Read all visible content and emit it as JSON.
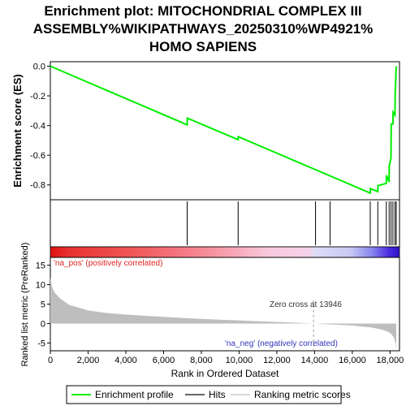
{
  "title_lines": [
    "Enrichment plot: MITOCHONDRIAL COMPLEX III",
    "ASSEMBLY%WIKIPATHWAYS_20250310%WP4921%",
    "HOMO SAPIENS"
  ],
  "chart_data": [
    {
      "type": "line",
      "panel": "enrichment",
      "ylabel": "Enrichment score (ES)",
      "xlim": [
        0,
        18500
      ],
      "ylim": [
        -0.9,
        0.03
      ],
      "yticks": [
        0.0,
        -0.2,
        -0.4,
        -0.6,
        -0.8
      ],
      "ytick_labels": [
        "0.0",
        "-0.2",
        "-0.4",
        "-0.6",
        "-0.8"
      ],
      "series": [
        {
          "name": "Enrichment profile",
          "color": "#00ee00",
          "x": [
            0,
            7250,
            7260,
            9950,
            9960,
            16950,
            16960,
            17350,
            17360,
            17800,
            17810,
            17950,
            17960,
            18050,
            18060,
            18150,
            18160,
            18260,
            18270,
            18330
          ],
          "y": [
            0.0,
            -0.395,
            -0.35,
            -0.495,
            -0.475,
            -0.855,
            -0.825,
            -0.845,
            -0.805,
            -0.79,
            -0.735,
            -0.78,
            -0.67,
            -0.62,
            -0.39,
            -0.39,
            -0.31,
            -0.33,
            -0.18,
            0.0
          ]
        }
      ]
    },
    {
      "type": "scatter",
      "panel": "hits",
      "hit_positions": [
        7250,
        9950,
        14050,
        14820,
        16950,
        17350,
        17800,
        17950,
        18050,
        18150,
        18260,
        18330
      ]
    },
    {
      "type": "area",
      "panel": "ranked_list",
      "ylabel": "Ranked list metric (PreRanked)",
      "xlabel": "Rank in Ordered Dataset",
      "xlim": [
        0,
        18500
      ],
      "ylim": [
        -7,
        17
      ],
      "xticks": [
        0,
        2000,
        4000,
        6000,
        8000,
        10000,
        12000,
        14000,
        16000,
        18000
      ],
      "xtick_labels": [
        "0",
        "2,000",
        "4,000",
        "6,000",
        "8,000",
        "10,000",
        "12,000",
        "14,000",
        "16,000",
        "18,000"
      ],
      "yticks": [
        15,
        10,
        5,
        0,
        -5
      ],
      "ytick_labels": [
        "15",
        "10",
        "5",
        "0",
        "-5"
      ],
      "x": [
        0,
        50,
        200,
        500,
        1000,
        2000,
        3000,
        4000,
        5000,
        6000,
        7000,
        8000,
        9000,
        10000,
        11000,
        12000,
        13000,
        13946,
        15000,
        16000,
        16500,
        17000,
        17500,
        17800,
        18000,
        18100,
        18200,
        18300,
        18330
      ],
      "values": [
        12,
        10,
        8.2,
        6.5,
        4.8,
        3.4,
        2.7,
        2.3,
        2.0,
        1.7,
        1.45,
        1.2,
        1.0,
        0.8,
        0.6,
        0.4,
        0.2,
        0.0,
        -0.25,
        -0.5,
        -0.75,
        -1.0,
        -1.5,
        -1.9,
        -2.4,
        -2.9,
        -3.6,
        -5.2,
        -6.5
      ],
      "zero_cross": 13946,
      "annotations": {
        "pos_label": "'na_pos' (positively correlated)",
        "neg_label": "'na_neg' (negatively correlated)",
        "zero_cross_label": "Zero cross at 13946"
      }
    }
  ],
  "legend": {
    "items": [
      {
        "label": "Enrichment profile",
        "color": "#00ee00"
      },
      {
        "label": "Hits",
        "color": "#666666"
      },
      {
        "label": "Ranking metric scores",
        "color": "#d9d9d9"
      }
    ]
  },
  "colors": {
    "profile": "#00ee00",
    "hit": "#000000",
    "metric_fill": "#bebebe",
    "pos_text": "#dd2222",
    "neg_text": "#3333bb"
  }
}
